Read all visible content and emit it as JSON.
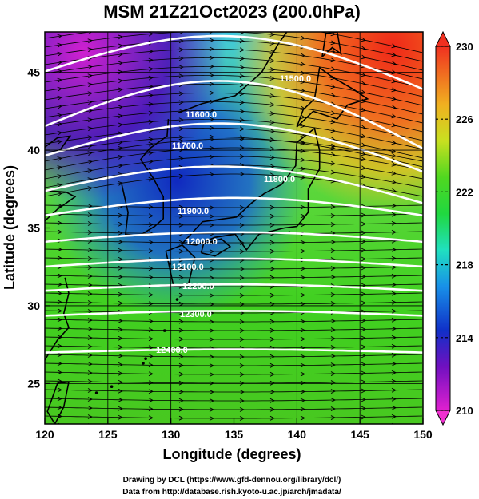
{
  "title": "MSM 21Z21Oct2023 (200.0hPa)",
  "xlabel": "Longitude (degrees)",
  "ylabel": "Latitude  (degrees)",
  "x_ticks": [
    "120",
    "125",
    "130",
    "135",
    "140",
    "145",
    "150"
  ],
  "y_ticks": [
    "25",
    "30",
    "35",
    "40",
    "45"
  ],
  "colorbar_ticks": [
    "230",
    "226",
    "222",
    "218",
    "214",
    "210"
  ],
  "contour_labels": [
    "11500.0",
    "11600.0",
    "11700.0",
    "11800.0",
    "11900.0",
    "12000.0",
    "12100.0",
    "12200.0",
    "12300.0",
    "12400.0"
  ],
  "credit_line1": "Drawing by DCL (https://www.gfd-dennou.org/library/dcl/)",
  "credit_line2": "Data from http://database.rish.kyoto-u.ac.jp/arch/jmadata/",
  "map_extent": {
    "lon": [
      120,
      150
    ],
    "lat": [
      22.4,
      47.6
    ]
  },
  "colorbar_range": [
    210,
    230
  ],
  "colors": {
    "contour": "#ffffff",
    "streamline": "#000000",
    "coast": "#000000"
  }
}
